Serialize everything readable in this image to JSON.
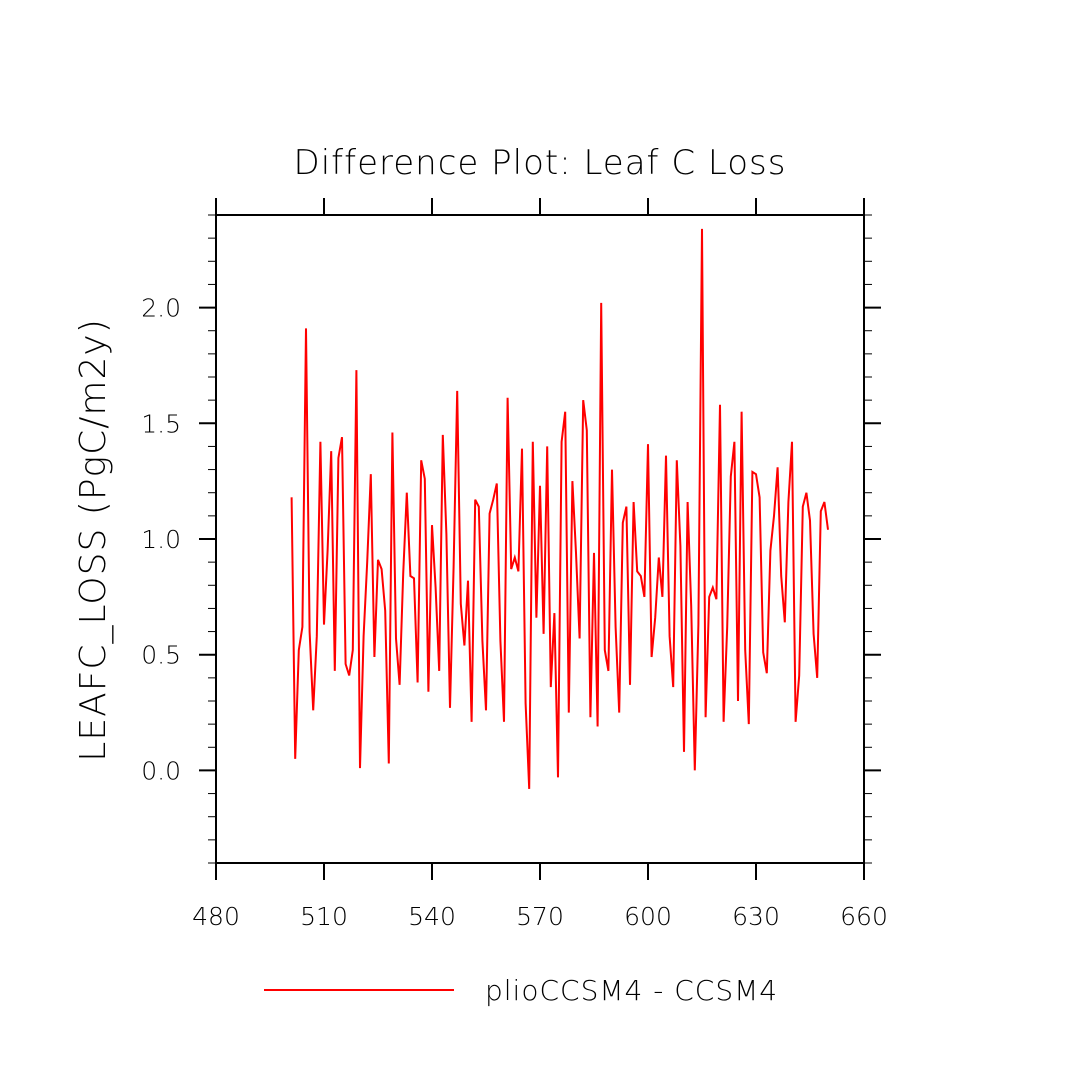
{
  "chart_data": {
    "type": "line",
    "title": "Difference Plot: Leaf C Loss",
    "xlabel": "",
    "ylabel": "LEAFC_LOSS  (PgC/m2y)",
    "xlim": [
      480,
      660
    ],
    "ylim": [
      -0.4,
      2.4
    ],
    "xticks": [
      480,
      510,
      540,
      570,
      600,
      630,
      660
    ],
    "xtick_labels": [
      "480",
      "510",
      "540",
      "570",
      "600",
      "630",
      "660"
    ],
    "yticks": [
      0.0,
      0.5,
      1.0,
      1.5,
      2.0
    ],
    "ytick_labels": [
      "0.0",
      "0.5",
      "1.0",
      "1.5",
      "2.0"
    ],
    "grid": false,
    "legend_position": "bottom",
    "series": [
      {
        "name": "plioCCSM4 - CCSM4",
        "color": "#ff0000",
        "x": [
          501,
          502,
          503,
          504,
          505,
          506,
          507,
          508,
          509,
          510,
          511,
          512,
          513,
          514,
          515,
          516,
          517,
          518,
          519,
          520,
          521,
          522,
          523,
          524,
          525,
          526,
          527,
          528,
          529,
          530,
          531,
          532,
          533,
          534,
          535,
          536,
          537,
          538,
          539,
          540,
          541,
          542,
          543,
          544,
          545,
          546,
          547,
          548,
          549,
          550,
          551,
          552,
          553,
          554,
          555,
          556,
          557,
          558,
          559,
          560,
          561,
          562,
          563,
          564,
          565,
          566,
          567,
          568,
          569,
          570,
          571,
          572,
          573,
          574,
          575,
          576,
          577,
          578,
          579,
          580,
          581,
          582,
          583,
          584,
          585,
          586,
          587,
          588,
          589,
          590,
          591,
          592,
          593,
          594,
          595,
          596,
          597,
          598,
          599,
          600,
          601,
          602,
          603,
          604,
          605,
          606,
          607,
          608,
          609,
          610,
          611,
          612,
          613,
          614,
          615,
          616,
          617,
          618,
          619,
          620,
          621,
          622,
          623,
          624,
          625,
          626,
          627,
          628,
          629,
          630,
          631,
          632,
          633,
          634,
          635,
          636,
          637,
          638,
          639,
          640,
          641,
          642,
          643,
          644,
          645,
          646,
          647,
          648,
          649,
          650
        ],
        "values": [
          1.18,
          0.05,
          0.52,
          0.62,
          1.91,
          0.6,
          0.26,
          0.58,
          1.42,
          0.63,
          0.95,
          1.38,
          0.43,
          1.35,
          1.44,
          0.46,
          0.41,
          0.52,
          1.73,
          0.01,
          0.58,
          0.9,
          1.28,
          0.49,
          0.91,
          0.87,
          0.69,
          0.03,
          1.46,
          0.57,
          0.37,
          0.85,
          1.2,
          0.84,
          0.83,
          0.38,
          1.34,
          1.26,
          0.34,
          1.06,
          0.79,
          0.43,
          1.45,
          1.02,
          0.27,
          0.88,
          1.64,
          0.72,
          0.54,
          0.82,
          0.21,
          1.17,
          1.14,
          0.56,
          0.26,
          1.11,
          1.17,
          1.24,
          0.56,
          0.21,
          1.61,
          0.87,
          0.92,
          0.86,
          1.39,
          0.29,
          -0.08,
          1.42,
          0.66,
          1.23,
          0.59,
          1.4,
          0.36,
          0.68,
          -0.03,
          1.42,
          1.55,
          0.25,
          1.25,
          0.94,
          0.57,
          1.6,
          1.47,
          0.23,
          0.94,
          0.19,
          2.02,
          0.52,
          0.43,
          1.3,
          0.62,
          0.25,
          1.07,
          1.14,
          0.37,
          1.16,
          0.86,
          0.84,
          0.75,
          1.41,
          0.49,
          0.66,
          0.92,
          0.75,
          1.36,
          0.58,
          0.36,
          1.34,
          0.97,
          0.08,
          1.16,
          0.71,
          0.0,
          0.63,
          2.34,
          0.23,
          0.75,
          0.79,
          0.74,
          1.58,
          0.21,
          0.62,
          1.27,
          1.42,
          0.3,
          1.55,
          0.52,
          0.2,
          1.29,
          1.28,
          1.18,
          0.51,
          0.42,
          0.95,
          1.1,
          1.31,
          0.84,
          0.64,
          1.16,
          1.42,
          0.21,
          0.41,
          1.14,
          1.2,
          1.08,
          0.59,
          0.4,
          1.12,
          1.16,
          1.04
        ]
      }
    ]
  }
}
